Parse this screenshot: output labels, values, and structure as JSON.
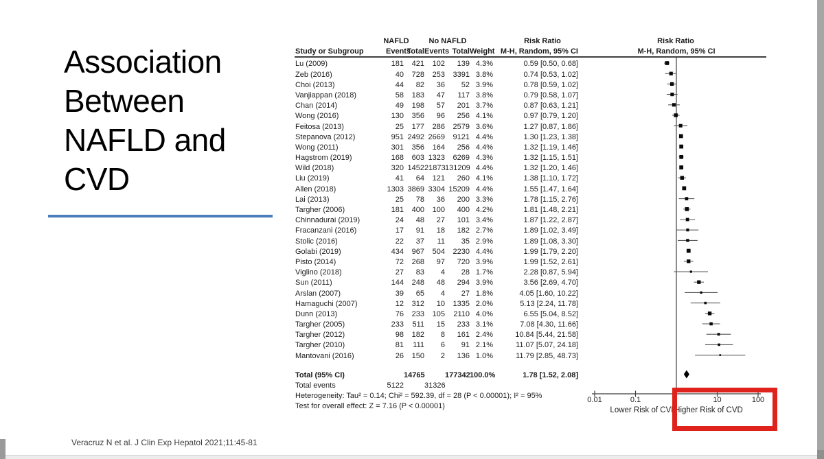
{
  "slide": {
    "title": "Association Between NAFLD and CVD",
    "citation": "Veracruz N et al. J Clin Exp Hepatol 2021;11:45-81",
    "accent_color": "#4a7ebb",
    "highlight_color": "#df231c"
  },
  "chart_data": {
    "type": "forest_plot",
    "plot_title": "Risk Ratio",
    "plot_subtitle": "M-H, Random, 95% CI",
    "group_headers": {
      "nafld": "NAFLD",
      "no_nafld": "No NAFLD",
      "risk_ratio": "Risk Ratio"
    },
    "columns": [
      "Study or Subgroup",
      "Events",
      "Total",
      "Events",
      "Total",
      "Weight",
      "M-H, Random, 95% CI"
    ],
    "studies": [
      {
        "name": "Lu (2009)",
        "e1": 181,
        "t1": 421,
        "e2": 102,
        "t2": 139,
        "w": 4.3,
        "rr": 0.59,
        "lo": 0.5,
        "hi": 0.68
      },
      {
        "name": "Zeb (2016)",
        "e1": 40,
        "t1": 728,
        "e2": 253,
        "t2": 3391,
        "w": 3.8,
        "rr": 0.74,
        "lo": 0.53,
        "hi": 1.02
      },
      {
        "name": "Choi (2013)",
        "e1": 44,
        "t1": 82,
        "e2": 36,
        "t2": 52,
        "w": 3.9,
        "rr": 0.78,
        "lo": 0.59,
        "hi": 1.02
      },
      {
        "name": "Vanjiappan (2018)",
        "e1": 58,
        "t1": 183,
        "e2": 47,
        "t2": 117,
        "w": 3.8,
        "rr": 0.79,
        "lo": 0.58,
        "hi": 1.07
      },
      {
        "name": "Chan (2014)",
        "e1": 49,
        "t1": 198,
        "e2": 57,
        "t2": 201,
        "w": 3.7,
        "rr": 0.87,
        "lo": 0.63,
        "hi": 1.21
      },
      {
        "name": "Wong (2016)",
        "e1": 130,
        "t1": 356,
        "e2": 96,
        "t2": 256,
        "w": 4.1,
        "rr": 0.97,
        "lo": 0.79,
        "hi": 1.2
      },
      {
        "name": "Feitosa (2013)",
        "e1": 25,
        "t1": 177,
        "e2": 286,
        "t2": 2579,
        "w": 3.6,
        "rr": 1.27,
        "lo": 0.87,
        "hi": 1.86
      },
      {
        "name": "Stepanova (2012)",
        "e1": 951,
        "t1": 2492,
        "e2": 2669,
        "t2": 9121,
        "w": 4.4,
        "rr": 1.3,
        "lo": 1.23,
        "hi": 1.38
      },
      {
        "name": "Wong (2011)",
        "e1": 301,
        "t1": 356,
        "e2": 164,
        "t2": 256,
        "w": 4.4,
        "rr": 1.32,
        "lo": 1.19,
        "hi": 1.46
      },
      {
        "name": "Hagstrom (2019)",
        "e1": 168,
        "t1": 603,
        "e2": 1323,
        "t2": 6269,
        "w": 4.3,
        "rr": 1.32,
        "lo": 1.15,
        "hi": 1.51
      },
      {
        "name": "Wild (2018)",
        "e1": 320,
        "t1": 1452,
        "e2": 21873,
        "t2": 131209,
        "w": 4.4,
        "rr": 1.32,
        "lo": 1.2,
        "hi": 1.46
      },
      {
        "name": "Liu (2019)",
        "e1": 41,
        "t1": 64,
        "e2": 121,
        "t2": 260,
        "w": 4.1,
        "rr": 1.38,
        "lo": 1.1,
        "hi": 1.72
      },
      {
        "name": "Allen (2018)",
        "e1": 1303,
        "t1": 3869,
        "e2": 3304,
        "t2": 15209,
        "w": 4.4,
        "rr": 1.55,
        "lo": 1.47,
        "hi": 1.64
      },
      {
        "name": "Lai (2013)",
        "e1": 25,
        "t1": 78,
        "e2": 36,
        "t2": 200,
        "w": 3.3,
        "rr": 1.78,
        "lo": 1.15,
        "hi": 2.76
      },
      {
        "name": "Targher (2006)",
        "e1": 181,
        "t1": 400,
        "e2": 100,
        "t2": 400,
        "w": 4.2,
        "rr": 1.81,
        "lo": 1.48,
        "hi": 2.21
      },
      {
        "name": "Chinnadurai (2019)",
        "e1": 24,
        "t1": 48,
        "e2": 27,
        "t2": 101,
        "w": 3.4,
        "rr": 1.87,
        "lo": 1.22,
        "hi": 2.87
      },
      {
        "name": "Fracanzani (2016)",
        "e1": 17,
        "t1": 91,
        "e2": 18,
        "t2": 182,
        "w": 2.7,
        "rr": 1.89,
        "lo": 1.02,
        "hi": 3.49
      },
      {
        "name": "Stolic (2016)",
        "e1": 22,
        "t1": 37,
        "e2": 11,
        "t2": 35,
        "w": 2.9,
        "rr": 1.89,
        "lo": 1.08,
        "hi": 3.3
      },
      {
        "name": "Golabi (2019)",
        "e1": 434,
        "t1": 967,
        "e2": 504,
        "t2": 2230,
        "w": 4.4,
        "rr": 1.99,
        "lo": 1.79,
        "hi": 2.2
      },
      {
        "name": "Pisto (2014)",
        "e1": 72,
        "t1": 268,
        "e2": 97,
        "t2": 720,
        "w": 3.9,
        "rr": 1.99,
        "lo": 1.52,
        "hi": 2.61
      },
      {
        "name": "Viglino (2018)",
        "e1": 27,
        "t1": 83,
        "e2": 4,
        "t2": 28,
        "w": 1.7,
        "rr": 2.28,
        "lo": 0.87,
        "hi": 5.94
      },
      {
        "name": "Sun (2011)",
        "e1": 144,
        "t1": 248,
        "e2": 48,
        "t2": 294,
        "w": 3.9,
        "rr": 3.56,
        "lo": 2.69,
        "hi": 4.7
      },
      {
        "name": "Arslan (2007)",
        "e1": 39,
        "t1": 65,
        "e2": 4,
        "t2": 27,
        "w": 1.8,
        "rr": 4.05,
        "lo": 1.6,
        "hi": 10.22
      },
      {
        "name": "Hamaguchi (2007)",
        "e1": 12,
        "t1": 312,
        "e2": 10,
        "t2": 1335,
        "w": 2.0,
        "rr": 5.13,
        "lo": 2.24,
        "hi": 11.78
      },
      {
        "name": "Dunn (2013)",
        "e1": 76,
        "t1": 233,
        "e2": 105,
        "t2": 2110,
        "w": 4.0,
        "rr": 6.55,
        "lo": 5.04,
        "hi": 8.52
      },
      {
        "name": "Targher (2005)",
        "e1": 233,
        "t1": 511,
        "e2": 15,
        "t2": 233,
        "w": 3.1,
        "rr": 7.08,
        "lo": 4.3,
        "hi": 11.66
      },
      {
        "name": "Targher (2012)",
        "e1": 98,
        "t1": 182,
        "e2": 8,
        "t2": 161,
        "w": 2.4,
        "rr": 10.84,
        "lo": 5.44,
        "hi": 21.58
      },
      {
        "name": "Targher (2010)",
        "e1": 81,
        "t1": 111,
        "e2": 6,
        "t2": 91,
        "w": 2.1,
        "rr": 11.07,
        "lo": 5.07,
        "hi": 24.18
      },
      {
        "name": "Mantovani (2016)",
        "e1": 26,
        "t1": 150,
        "e2": 2,
        "t2": 136,
        "w": 1.0,
        "rr": 11.79,
        "lo": 2.85,
        "hi": 48.73
      }
    ],
    "total": {
      "label": "Total (95% CI)",
      "t1": 14765,
      "t2": 177342,
      "w": "100.0%",
      "rr": 1.78,
      "lo": 1.52,
      "hi": 2.08
    },
    "total_events": {
      "label": "Total events",
      "e1": 5122,
      "e2": 31326
    },
    "heterogeneity": "Heterogeneity: Tau² = 0.14; Chi² = 592.39, df = 28 (P < 0.00001); I² = 95%",
    "overall_effect": "Test for overall effect: Z = 7.16 (P < 0.00001)",
    "axis": {
      "scale": "log",
      "range": [
        0.01,
        100
      ],
      "center": 1,
      "tick_labels": [
        "0.01",
        "0.1",
        "10",
        "100"
      ],
      "left_label": "Lower Risk of CVD",
      "right_label": "Higher Risk of CVD"
    }
  }
}
